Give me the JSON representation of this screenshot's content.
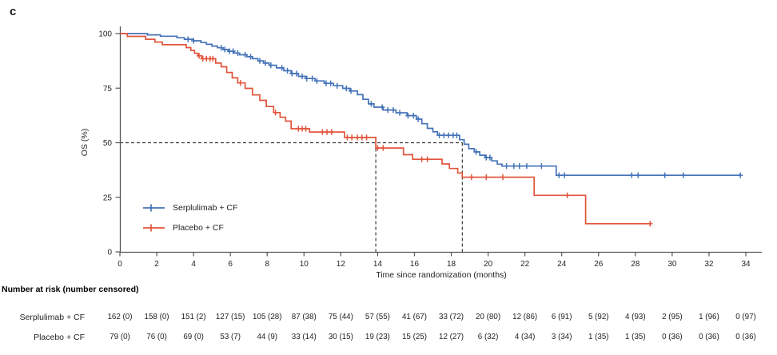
{
  "panel_label": "c",
  "chart_data": {
    "type": "line",
    "subtype": "kaplan-meier-step",
    "title": "",
    "xlabel": "Time since randomization (months)",
    "ylabel": "OS (%)",
    "xlim": [
      0,
      34
    ],
    "ylim": [
      0,
      100
    ],
    "x_ticks": [
      0,
      2,
      4,
      6,
      8,
      10,
      12,
      14,
      16,
      18,
      20,
      22,
      24,
      26,
      28,
      30,
      32,
      34
    ],
    "y_ticks": [
      0,
      25,
      50,
      75,
      100
    ],
    "grid": false,
    "legend_position": "lower-left",
    "median_markers": {
      "value_pct": 50,
      "times": [
        13.9,
        18.6
      ]
    },
    "series": [
      {
        "name": "Serplulimab + CF",
        "color": "#4472b8",
        "steps": [
          [
            0,
            100
          ],
          [
            1.5,
            99.4
          ],
          [
            2.2,
            98.8
          ],
          [
            3.1,
            98.1
          ],
          [
            3.5,
            97.4
          ],
          [
            4.0,
            96.7
          ],
          [
            4.4,
            95.9
          ],
          [
            4.7,
            95.1
          ],
          [
            5.0,
            94.3
          ],
          [
            5.3,
            93.5
          ],
          [
            5.6,
            92.7
          ],
          [
            5.9,
            91.9
          ],
          [
            6.2,
            91.1
          ],
          [
            6.5,
            90.3
          ],
          [
            6.9,
            89.4
          ],
          [
            7.2,
            88.5
          ],
          [
            7.5,
            87.5
          ],
          [
            7.8,
            86.5
          ],
          [
            8.1,
            85.5
          ],
          [
            8.5,
            84.3
          ],
          [
            8.9,
            83.0
          ],
          [
            9.3,
            81.7
          ],
          [
            9.7,
            80.4
          ],
          [
            10.1,
            79.4
          ],
          [
            10.6,
            78.3
          ],
          [
            11.1,
            77.2
          ],
          [
            11.6,
            76.1
          ],
          [
            12.1,
            74.9
          ],
          [
            12.5,
            73.7
          ],
          [
            12.9,
            72.0
          ],
          [
            13.2,
            69.9
          ],
          [
            13.5,
            67.8
          ],
          [
            13.8,
            66.3
          ],
          [
            14.3,
            65.0
          ],
          [
            15.0,
            63.7
          ],
          [
            15.6,
            62.4
          ],
          [
            16.1,
            60.8
          ],
          [
            16.4,
            58.7
          ],
          [
            16.7,
            56.6
          ],
          [
            17.0,
            55.0
          ],
          [
            17.25,
            53.4
          ],
          [
            18.45,
            51.4
          ],
          [
            18.7,
            49.3
          ],
          [
            18.95,
            47.3
          ],
          [
            19.25,
            45.8
          ],
          [
            19.55,
            44.3
          ],
          [
            19.85,
            43.2
          ],
          [
            20.2,
            41.7
          ],
          [
            20.5,
            40.2
          ],
          [
            20.75,
            39.3
          ],
          [
            23.7,
            35.1
          ],
          [
            33.7,
            35.1
          ]
        ],
        "censor_times": [
          3.7,
          4.0,
          5.5,
          5.7,
          5.95,
          6.15,
          6.4,
          6.8,
          7.1,
          7.6,
          7.9,
          8.2,
          8.8,
          9.1,
          9.35,
          9.6,
          9.9,
          10.15,
          10.45,
          10.7,
          11.2,
          11.45,
          11.8,
          12.3,
          12.55,
          13.65,
          14.25,
          14.55,
          14.85,
          15.2,
          15.65,
          15.95,
          16.2,
          17.35,
          17.6,
          17.85,
          18.1,
          18.3,
          19.35,
          19.9,
          20.1,
          21.0,
          21.4,
          21.7,
          22.1,
          22.9,
          23.85,
          24.15,
          27.8,
          28.15,
          29.6,
          30.6,
          33.7
        ]
      },
      {
        "name": "Placebo + CF",
        "color": "#e2543c",
        "steps": [
          [
            0,
            100
          ],
          [
            0.4,
            98.7
          ],
          [
            1.4,
            97.4
          ],
          [
            1.9,
            96.1
          ],
          [
            2.3,
            94.9
          ],
          [
            3.6,
            93.6
          ],
          [
            3.85,
            92.3
          ],
          [
            4.05,
            91.0
          ],
          [
            4.25,
            89.8
          ],
          [
            4.45,
            88.5
          ],
          [
            5.2,
            86.5
          ],
          [
            5.5,
            84.8
          ],
          [
            5.8,
            82.2
          ],
          [
            6.1,
            79.7
          ],
          [
            6.4,
            77.4
          ],
          [
            6.8,
            74.9
          ],
          [
            7.2,
            71.9
          ],
          [
            7.6,
            69.4
          ],
          [
            7.95,
            66.6
          ],
          [
            8.35,
            63.8
          ],
          [
            8.7,
            61.7
          ],
          [
            9.0,
            59.9
          ],
          [
            9.3,
            56.4
          ],
          [
            10.3,
            54.9
          ],
          [
            12.2,
            52.4
          ],
          [
            13.9,
            47.6
          ],
          [
            15.4,
            44.5
          ],
          [
            15.9,
            42.4
          ],
          [
            17.5,
            40.3
          ],
          [
            17.9,
            38.2
          ],
          [
            18.35,
            36.1
          ],
          [
            18.6,
            34.2
          ],
          [
            22.5,
            25.9
          ],
          [
            25.3,
            12.9
          ],
          [
            28.8,
            12.9
          ]
        ],
        "censor_times": [
          4.3,
          4.5,
          4.7,
          4.9,
          5.05,
          6.55,
          8.45,
          9.7,
          9.9,
          10.1,
          11.0,
          11.25,
          11.5,
          12.35,
          12.6,
          12.9,
          13.15,
          13.4,
          14.0,
          14.3,
          16.4,
          16.7,
          19.1,
          19.9,
          20.8,
          24.3,
          28.8
        ]
      }
    ]
  },
  "risk_table": {
    "title": "Number at risk (number censored)",
    "time_points": [
      0,
      2,
      4,
      6,
      8,
      10,
      12,
      14,
      16,
      18,
      20,
      22,
      24,
      26,
      28,
      30,
      32,
      34
    ],
    "rows": [
      {
        "label": "Serplulimab + CF",
        "values": [
          "162 (0)",
          "158 (0)",
          "151 (2)",
          "127 (15)",
          "105 (28)",
          "87 (38)",
          "75 (44)",
          "57 (55)",
          "41 (67)",
          "33 (72)",
          "20 (80)",
          "12 (86)",
          "6 (91)",
          "5 (92)",
          "4 (93)",
          "2 (95)",
          "1 (96)",
          "0 (97)"
        ]
      },
      {
        "label": "Placebo + CF",
        "values": [
          "79 (0)",
          "76 (0)",
          "69 (0)",
          "53 (7)",
          "44 (9)",
          "33 (14)",
          "30 (15)",
          "19 (23)",
          "15 (25)",
          "12 (27)",
          "6 (32)",
          "4 (34)",
          "3 (34)",
          "1 (35)",
          "1 (35)",
          "0 (36)",
          "0 (36)",
          "0 (36)"
        ]
      }
    ]
  },
  "colors": {
    "serplulimab": "#4472b8",
    "placebo": "#e2543c",
    "axis": "#55565a",
    "dashed": "#3a3a3a",
    "text": "#231f20"
  }
}
